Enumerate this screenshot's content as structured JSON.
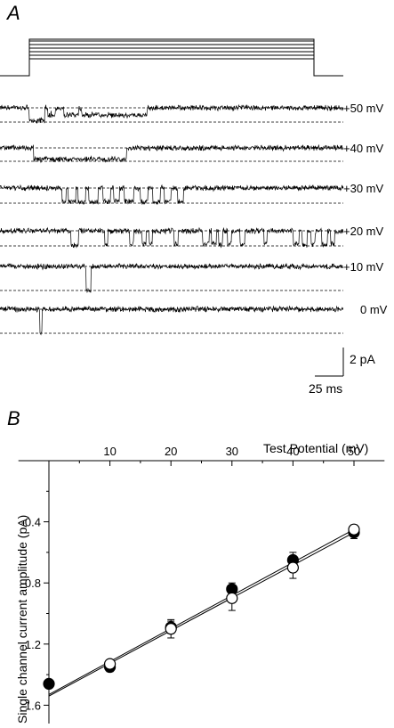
{
  "panel_a": {
    "label": "A",
    "traces": [
      {
        "label": "+50 mV",
        "events": [
          [
            33,
            50
          ],
          [
            54,
            57
          ],
          [
            58,
            62
          ],
          [
            72,
            88
          ],
          [
            92,
            165
          ]
        ],
        "depth": [
          0.9,
          0.55,
          0.55,
          0.5,
          0.5
        ],
        "seed": 11
      },
      {
        "label": "+40 mV",
        "events": [
          [
            38,
            142
          ]
        ],
        "depth": [
          0.85
        ],
        "seed": 23
      },
      {
        "label": "+30 mV",
        "events": [
          [
            70,
            74
          ],
          [
            77,
            85
          ],
          [
            88,
            96
          ],
          [
            100,
            110
          ],
          [
            116,
            124
          ],
          [
            128,
            134
          ],
          [
            140,
            150
          ],
          [
            158,
            166
          ],
          [
            172,
            180
          ],
          [
            185,
            192
          ],
          [
            200,
            206
          ]
        ],
        "depth": [
          0.9,
          0.9,
          0.9,
          0.9,
          0.9,
          0.9,
          0.9,
          0.9,
          0.9,
          0.9,
          0.9
        ],
        "seed": 37
      },
      {
        "label": "+20 mV",
        "events": [
          [
            80,
            88
          ],
          [
            118,
            121
          ],
          [
            146,
            150
          ],
          [
            160,
            164
          ],
          [
            168,
            171
          ],
          [
            196,
            200
          ],
          [
            228,
            235
          ],
          [
            238,
            243
          ],
          [
            246,
            250
          ],
          [
            256,
            260
          ],
          [
            270,
            275
          ],
          [
            297,
            300
          ],
          [
            330,
            336
          ],
          [
            340,
            345
          ],
          [
            350,
            354
          ],
          [
            362,
            368
          ],
          [
            372,
            376
          ]
        ],
        "depth": [
          0.95,
          0.9,
          0.85,
          0.9,
          0.8,
          0.9,
          0.9,
          0.85,
          0.9,
          0.85,
          0.9,
          0.8,
          0.9,
          0.95,
          0.9,
          0.9,
          0.85
        ],
        "seed": 41
      },
      {
        "label": "+10 mV",
        "events": [
          [
            97,
            102
          ]
        ],
        "depth": [
          1.0
        ],
        "seed": 53
      },
      {
        "label": "0 mV",
        "events": [
          [
            45,
            47
          ]
        ],
        "depth": [
          1.0
        ],
        "seed": 67
      }
    ],
    "scale_bar": {
      "y_label": "2 pA",
      "x_label": "25 ms"
    }
  },
  "panel_b": {
    "label": "B"
  },
  "chart_data": {
    "type": "scatter",
    "title": "",
    "xlabel": "Test Potential (mV)",
    "ylabel": "Single channel current amplitude (pA)",
    "xlim": [
      -5,
      55
    ],
    "ylim": [
      -1.72,
      0
    ],
    "x_ticks": [
      10,
      20,
      30,
      40,
      50
    ],
    "y_ticks": [
      -0.4,
      -0.8,
      -1.2,
      -1.6
    ],
    "series": [
      {
        "marker": "filled-circle",
        "color": "#000000",
        "x": [
          0,
          10,
          20,
          30,
          40,
          50
        ],
        "y": [
          -1.46,
          -1.35,
          -1.09,
          -0.84,
          -0.65,
          -0.47
        ],
        "err": [
          0.02,
          0.03,
          0.04,
          0.04,
          0.05,
          0.04
        ]
      },
      {
        "marker": "open-circle",
        "color": "#000000",
        "x": [
          10,
          20,
          30,
          40,
          50
        ],
        "y": [
          -1.33,
          -1.1,
          -0.9,
          -0.7,
          -0.45
        ],
        "err": [
          0.02,
          0.06,
          0.08,
          0.07,
          0.03
        ]
      }
    ],
    "fit_lines": [
      {
        "x": [
          0,
          50
        ],
        "y": [
          -1.53,
          -0.45
        ]
      },
      {
        "x": [
          0,
          50
        ],
        "y": [
          -1.54,
          -0.47
        ]
      }
    ]
  }
}
